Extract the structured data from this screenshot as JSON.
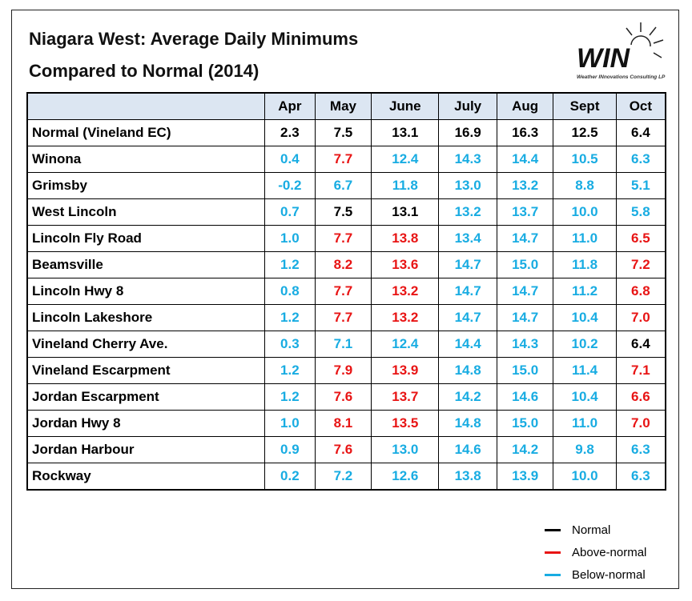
{
  "header": {
    "title": [
      "Niagara West: Average Daily Minimums",
      "Compared to Normal (2014)"
    ],
    "logo": "WIN",
    "logo_caption": "Weather INnovations Consulting LP"
  },
  "table": {
    "columns": [
      "Apr",
      "May",
      "June",
      "July",
      "Aug",
      "Sept",
      "Oct"
    ],
    "rows": [
      [
        "Normal (Vineland EC)",
        "2.3",
        "7.5",
        "13.1",
        "16.9",
        "16.3",
        "12.5",
        "6.4"
      ],
      [
        "Winona",
        "0.4",
        "7.7",
        "12.4",
        "14.3",
        "14.4",
        "10.5",
        "6.3"
      ],
      [
        "Grimsby",
        "-0.2",
        "6.7",
        "11.8",
        "13.0",
        "13.2",
        "8.8",
        "5.1"
      ],
      [
        "West Lincoln",
        "0.7",
        "7.5",
        "13.1",
        "13.2",
        "13.7",
        "10.0",
        "5.8"
      ],
      [
        "Lincoln Fly Road",
        "1.0",
        "7.7",
        "13.8",
        "13.4",
        "14.7",
        "11.0",
        "6.5"
      ],
      [
        "Beamsville",
        "1.2",
        "8.2",
        "13.6",
        "14.7",
        "15.0",
        "11.8",
        "7.2"
      ],
      [
        "Lincoln Hwy 8",
        "0.8",
        "7.7",
        "13.2",
        "14.7",
        "14.7",
        "11.2",
        "6.8"
      ],
      [
        "Lincoln Lakeshore",
        "1.2",
        "7.7",
        "13.2",
        "14.7",
        "14.7",
        "10.4",
        "7.0"
      ],
      [
        "Vineland Cherry Ave.",
        "0.3",
        "7.1",
        "12.4",
        "14.4",
        "14.3",
        "10.2",
        "6.4"
      ],
      [
        "Vineland Escarpment",
        "1.2",
        "7.9",
        "13.9",
        "14.8",
        "15.0",
        "11.4",
        "7.1"
      ],
      [
        "Jordan Escarpment",
        "1.2",
        "7.6",
        "13.7",
        "14.2",
        "14.6",
        "10.4",
        "6.6"
      ],
      [
        "Jordan Hwy 8",
        "1.0",
        "8.1",
        "13.5",
        "14.8",
        "15.0",
        "11.0",
        "7.0"
      ],
      [
        "Jordan Harbour",
        "0.9",
        "7.6",
        "13.0",
        "14.6",
        "14.2",
        "9.8",
        "6.3"
      ],
      [
        "Rockway",
        "0.2",
        "7.2",
        "12.6",
        "13.8",
        "13.9",
        "10.0",
        "6.3"
      ]
    ]
  },
  "legend": [
    {
      "label": "Normal",
      "color": "#000000"
    },
    {
      "label": "Above-normal",
      "color": "#e81414"
    },
    {
      "label": "Below-normal",
      "color": "#18ace2"
    }
  ]
}
